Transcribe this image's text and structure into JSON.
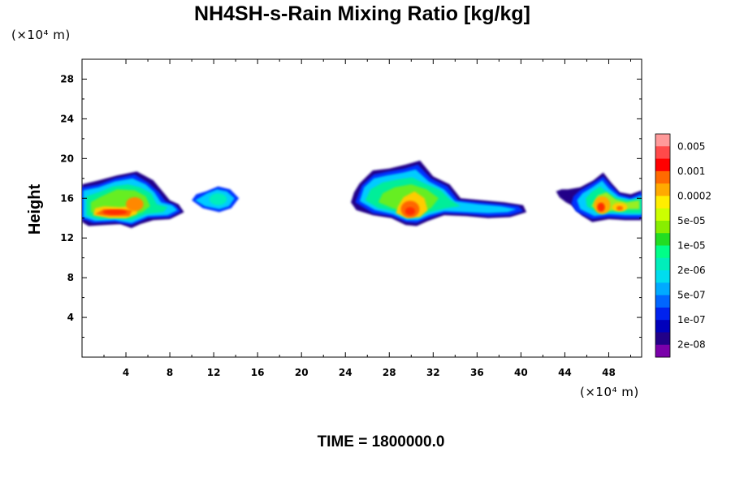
{
  "chart_data": {
    "type": "heatmap",
    "title": "NH4SH-s-Rain Mixing Ratio [kg/kg]",
    "ylabel": "Height",
    "xunit": "(×10⁴ m)",
    "yunit": "(×10⁴ m)",
    "footer": "TIME = 1800000.0",
    "xlim": [
      0,
      51
    ],
    "ylim": [
      0,
      30
    ],
    "xticks": [
      "4",
      "8",
      "12",
      "16",
      "20",
      "24",
      "28",
      "32",
      "36",
      "40",
      "44",
      "48"
    ],
    "yticks": [
      "4",
      "8",
      "12",
      "16",
      "20",
      "24",
      "28"
    ],
    "colorbar": {
      "labels": [
        "0.005",
        "0.001",
        "0.0002",
        "5e-05",
        "1e-05",
        "2e-06",
        "5e-07",
        "1e-07",
        "2e-08"
      ],
      "colors": [
        "#ff9a9a",
        "#ff4a4a",
        "#ff0000",
        "#ff6a00",
        "#ffaa00",
        "#ffee00",
        "#ccff00",
        "#88ee00",
        "#22dd22",
        "#00ff88",
        "#00eebb",
        "#00ddee",
        "#00aaff",
        "#0066ff",
        "#0022ee",
        "#0000bb",
        "#220088",
        "#7a00aa"
      ]
    },
    "clouds": [
      {
        "x_range": [
          0,
          9.3
        ],
        "y_range": [
          13,
          18.8
        ],
        "core_x": 3.5,
        "core_y": 14.6,
        "peak": "0.001"
      },
      {
        "x_range": [
          10,
          14.3
        ],
        "y_range": [
          14.6,
          17.2
        ],
        "peak": "5e-07"
      },
      {
        "x_range": [
          24.5,
          40.5
        ],
        "y_range": [
          13.2,
          19.8
        ],
        "core_x": 30,
        "core_y": 14.4,
        "peak": "0.001"
      },
      {
        "x_range": [
          43,
          51
        ],
        "y_range": [
          13.6,
          18.6
        ],
        "core_x": 47,
        "core_y": 15,
        "peak": "0.001"
      }
    ]
  }
}
